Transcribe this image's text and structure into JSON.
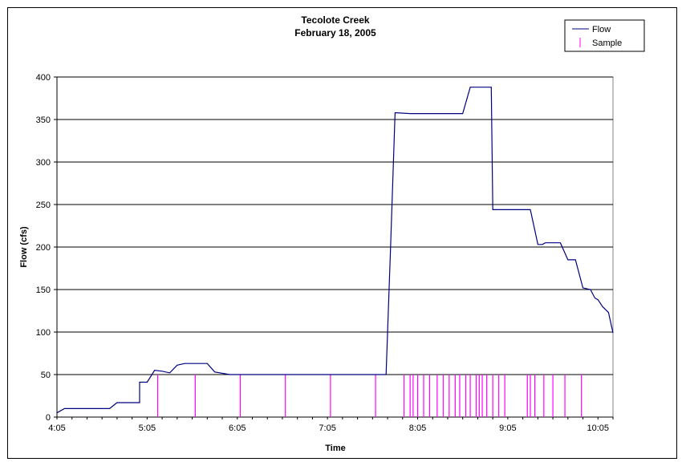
{
  "chart_data": {
    "type": "line",
    "title": "Tecolote Creek",
    "subtitle": "February 18, 2005",
    "xlabel": "Time",
    "ylabel": "Flow (cfs)",
    "xlim": [
      "4:05",
      "10:15"
    ],
    "ylim": [
      0,
      400
    ],
    "x_tick_labels": [
      "4:05",
      "5:05",
      "6:05",
      "7:05",
      "8:05",
      "9:05",
      "10:05"
    ],
    "y_tick_labels": [
      "0",
      "50",
      "100",
      "150",
      "200",
      "250",
      "300",
      "350",
      "400"
    ],
    "grid": "horizontal",
    "legend_position": "top-right",
    "series": [
      {
        "name": "Flow",
        "kind": "line",
        "color": "#000080",
        "x": [
          "4:05",
          "4:10",
          "4:40",
          "4:45",
          "5:00",
          "5:00",
          "5:05",
          "5:10",
          "5:15",
          "5:20",
          "5:25",
          "5:30",
          "5:45",
          "5:50",
          "6:00",
          "7:00",
          "7:35",
          "7:44",
          "7:47",
          "7:50",
          "8:00",
          "8:35",
          "8:40",
          "8:54",
          "8:55",
          "9:05",
          "9:20",
          "9:25",
          "9:28",
          "9:30",
          "9:40",
          "9:45",
          "9:50",
          "9:55",
          "10:00",
          "10:03",
          "10:05",
          "10:08",
          "10:12",
          "10:15"
        ],
        "y": [
          5,
          10,
          10,
          17,
          17,
          41,
          41,
          55,
          54,
          52,
          61,
          63,
          63,
          53,
          50,
          50,
          50,
          50,
          200,
          358,
          357,
          357,
          388,
          388,
          244,
          244,
          244,
          203,
          203,
          205,
          205,
          185,
          185,
          152,
          150,
          140,
          138,
          130,
          123,
          99
        ]
      },
      {
        "name": "Sample",
        "kind": "vertical-bars",
        "color": "#ff00ff",
        "height": 50,
        "x": [
          "5:12",
          "5:37",
          "6:07",
          "6:37",
          "7:07",
          "7:37",
          "7:56",
          "8:00",
          "8:02",
          "8:05",
          "8:09",
          "8:13",
          "8:18",
          "8:22",
          "8:26",
          "8:30",
          "8:33",
          "8:37",
          "8:40",
          "8:44",
          "8:46",
          "8:48",
          "8:51",
          "8:55",
          "8:59",
          "9:03",
          "9:18",
          "9:20",
          "9:23",
          "9:29",
          "9:35",
          "9:43",
          "9:54"
        ]
      }
    ]
  }
}
